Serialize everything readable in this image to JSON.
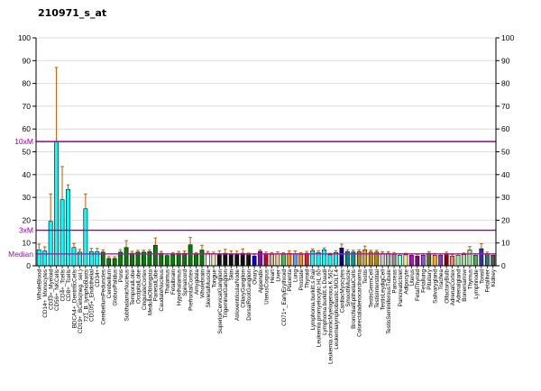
{
  "chart_data": {
    "type": "bar",
    "title": "210971_s_at",
    "xlabel": "",
    "ylabel": "",
    "ylim": [
      0,
      100
    ],
    "yticks": [
      0,
      10,
      20,
      30,
      40,
      50,
      60,
      70,
      80,
      90,
      100
    ],
    "grid": true,
    "legend_position": "none",
    "marker_lines": [
      {
        "label": "10xM",
        "value": 54.5,
        "line_color": "#990099",
        "label_color": "#990099"
      },
      {
        "label": "3xM",
        "value": 15.6,
        "line_color": "#990099",
        "label_color": "#990099"
      },
      {
        "label": "Median",
        "value": 5.2,
        "line_color": "#CC00CC",
        "label_color": "#882299"
      }
    ],
    "error_bar_color": "#C05A00",
    "categories": [
      "WholeBlood",
      "CD14+_Monocytes",
      "CD33+_Myeloid",
      "CD56+_NKCells",
      "CD4+_Tcells",
      "CD8+_Tcells",
      "BDCA4+_DentriticCells",
      "CD19+_BCells(neg._sel.)",
      "721_B_lymphoblasts",
      "CD105+_Endothelial",
      "CD34+",
      "CerebellumPeduncles",
      "Cerebellum",
      "GlobusPalidus",
      "Pons",
      "SubthalamicNucleus",
      "TemporalLobe",
      "OccipitalLobe",
      "CingulateCortex",
      "MedullaOblongata",
      "ParietalLobe",
      "CaudateNucleus",
      "Thalamus",
      "Fetalbrain",
      "Hypothalamus",
      "Spinalcord",
      "PrefrontalCortex",
      "Amygdala",
      "Wholebrain",
      "SkeletalMuscle",
      "Tongue",
      "SuperiorCervicalGanglion",
      "TrigeminalGanglion",
      "Skin",
      "AtrioventricularNode",
      "CiliaryGanglion",
      "DorsalRootGanglion",
      "Ovary",
      "Appendix",
      "UterusCorpus",
      "Heart",
      "Liver",
      "CD71+_EarlyErythroid",
      "Placenta",
      "Lung",
      "Prostate",
      "Thyroid",
      "Lymphoma.burkitt.s.Raji",
      "Leukemia.promyelocytic.HL.60",
      "Lymphoma.burkitt.s.Daudi",
      "Leukemia.chronicMyelogenous.K.562",
      "Leukemialymphoblastic.MOLT.4",
      "CardiacMyocytes",
      "SmoothMuscle",
      "BronchialEpithelialCells",
      "Colorectaladenocarcinoma",
      "Testis",
      "TestisGermCell",
      "TestisInterstitial",
      "TestisLeydigCell",
      "TestisSeminiferousTubule",
      "Pancreas",
      "PancreaticIslet",
      "Adipocyte",
      "Uterus",
      "FetalThyroid",
      "Fetallung",
      "Pituitary",
      "Salivarygland",
      "Trachea",
      "OlfactoryBulb",
      "AdrenalCortex",
      "Adrenalgland",
      "Bonemarrow",
      "Thymus",
      "Lymphnode",
      "Tonsil",
      "Fetalliver",
      "Kidney"
    ],
    "values": [
      7,
      6.5,
      19.5,
      54.5,
      29,
      33.5,
      8,
      6,
      25,
      6.2,
      6.2,
      6,
      3.2,
      3.2,
      6,
      8,
      5.5,
      6,
      6,
      6.2,
      9,
      5.5,
      4.5,
      5,
      5.5,
      5.5,
      9.2,
      5,
      6.9,
      5.5,
      5.3,
      5,
      5.5,
      5,
      5,
      5.5,
      4.8,
      4.3,
      6.3,
      5.3,
      5,
      5.3,
      5,
      5.5,
      5.3,
      5,
      5.5,
      6.6,
      5.8,
      7,
      4.8,
      5.8,
      7.8,
      6.2,
      6,
      6.2,
      7,
      6,
      6,
      5.5,
      5.5,
      5,
      4.6,
      4.8,
      4.6,
      4.2,
      4.6,
      5.5,
      4.6,
      4.6,
      5.3,
      4.2,
      4.6,
      4.9,
      6.9,
      4.6,
      7.5,
      5.3,
      4.6
    ],
    "error_tops": [
      9.5,
      8.3,
      31.5,
      87,
      43.5,
      35.5,
      9.8,
      7.2,
      31.5,
      7.6,
      7.6,
      7,
      4,
      4,
      7,
      11,
      6.3,
      6.8,
      6.8,
      7,
      12.2,
      6.3,
      5.2,
      5.8,
      6.3,
      6.5,
      12.4,
      5.8,
      9,
      6.3,
      6,
      6.6,
      7.2,
      6.5,
      6.4,
      7.4,
      5.6,
      5,
      7,
      6,
      5.8,
      6.1,
      5.7,
      6.6,
      6.5,
      5.8,
      6.3,
      7.4,
      6.6,
      7.8,
      5.5,
      6.6,
      9.5,
      7,
      6.8,
      7,
      8.6,
      6.8,
      6.8,
      6.2,
      6.2,
      5.8,
      5.3,
      5.5,
      5.3,
      4.9,
      5.3,
      6.2,
      5.4,
      5.3,
      6,
      4.9,
      5.3,
      5.6,
      8.4,
      5.3,
      9.7,
      6,
      5.2
    ],
    "bar_colors": [
      "#00FFFF",
      "#00FFFF",
      "#00FFFF",
      "#00FFFF",
      "#00FFFF",
      "#00FFFF",
      "#00FFFF",
      "#00FFFF",
      "#00FFFF",
      "#00FFFF",
      "#00FFFF",
      "#008000",
      "#008000",
      "#008000",
      "#008000",
      "#008000",
      "#008000",
      "#008000",
      "#008000",
      "#008000",
      "#008000",
      "#008000",
      "#008000",
      "#008000",
      "#008000",
      "#008000",
      "#008000",
      "#008000",
      "#008000",
      "#FFFFF0",
      "#F5DEB3",
      "#111111",
      "#111111",
      "#111111",
      "#111111",
      "#111111",
      "#111111",
      "#0000DD",
      "#9900CC",
      "#CC0033",
      "#D2B48C",
      "#E6C79C",
      "#33CC33",
      "#FF8C00",
      "#6699EE",
      "#EE8833",
      "#DD2222",
      "#00FFFF",
      "#00FFFF",
      "#00FFFF",
      "#00FFFF",
      "#00FFFF",
      "#000088",
      "#008B8B",
      "#009999",
      "#B8860B",
      "#DAA520",
      "#B8860B",
      "#B8860B",
      "#C8C8C8",
      "#B0B0B0",
      "#909090",
      "#7FFFD4",
      "#F0E68C",
      "#CC00CC",
      "#880088",
      "#8855CC",
      "#556B2F",
      "#FFA500",
      "#9933CC",
      "#8B0000",
      "#FA8072",
      "#98E898",
      "#98E898",
      "#98E898",
      "#55AA55",
      "#333399",
      "#207878",
      "#555555"
    ],
    "axis_color": "#000000",
    "grid_color": "#DCDCDC"
  }
}
